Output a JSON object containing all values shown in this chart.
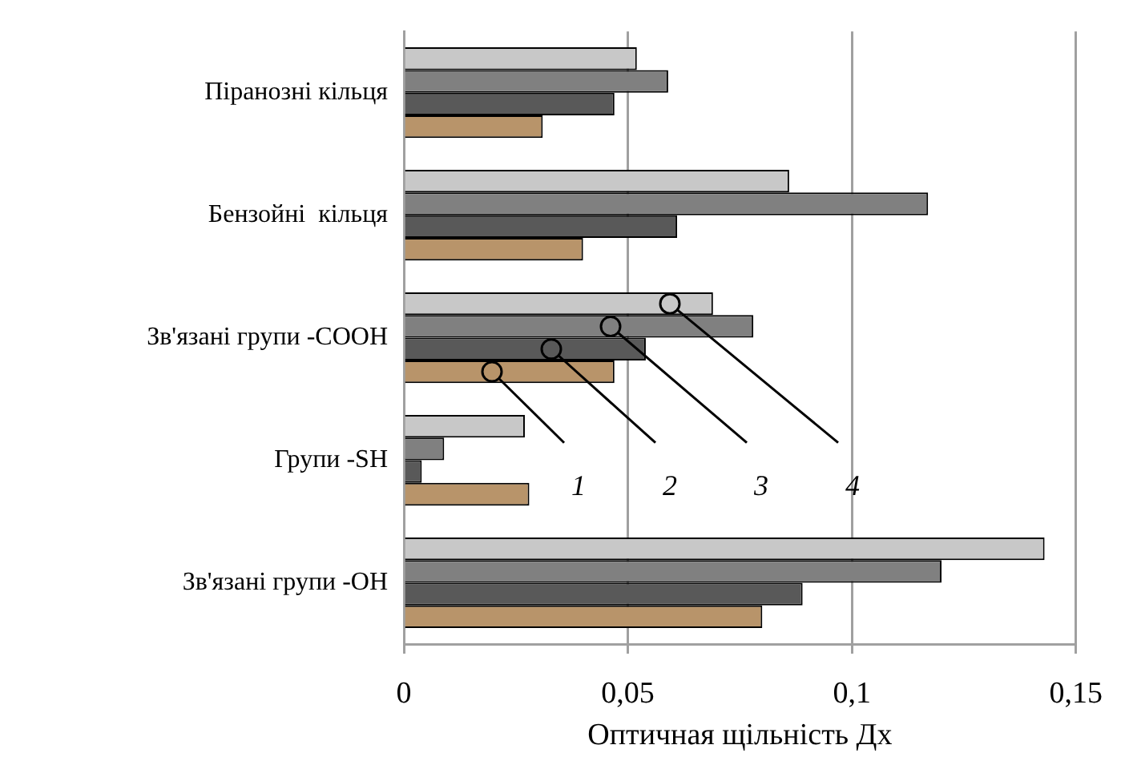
{
  "chart_data": {
    "type": "bar",
    "orientation": "horizontal",
    "xlabel": "Оптичная щільність Дх",
    "categories": [
      "Піранозні кільця",
      "Бензойні  кільця",
      "Зв'язані групи -COOH",
      "Групи -SH",
      "Зв'язані групи -OH"
    ],
    "series": [
      {
        "name": "4",
        "color": "#c8c8c8",
        "values": [
          0.052,
          0.086,
          0.069,
          0.027,
          0.143
        ]
      },
      {
        "name": "3",
        "color": "#808080",
        "values": [
          0.059,
          0.117,
          0.078,
          0.009,
          0.12
        ]
      },
      {
        "name": "2",
        "color": "#595959",
        "values": [
          0.047,
          0.061,
          0.054,
          0.004,
          0.089
        ]
      },
      {
        "name": "1",
        "color": "#b8946a",
        "values": [
          0.031,
          0.04,
          0.047,
          0.028,
          0.08
        ]
      }
    ],
    "xlim": [
      0,
      0.15
    ],
    "xticks": [
      0,
      {
        "value": 0.05,
        "label": "0,05"
      },
      {
        "value": 0.1,
        "label": "0,1"
      },
      {
        "value": 0.15,
        "label": "0,15"
      }
    ],
    "grid": "x",
    "legend": "bottom"
  }
}
